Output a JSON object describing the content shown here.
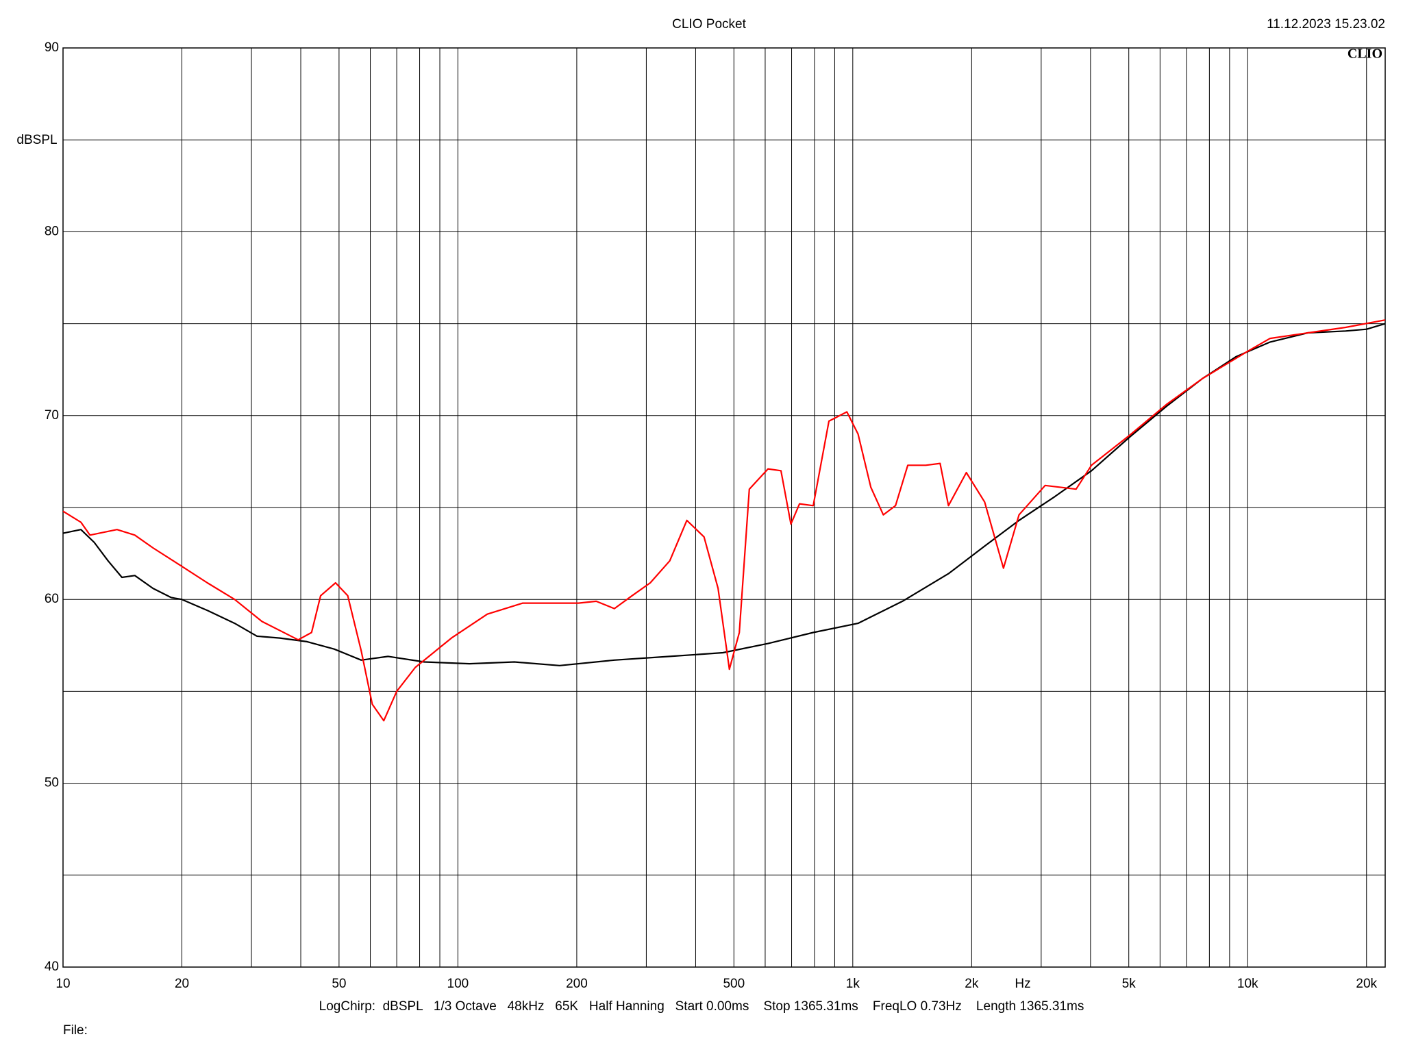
{
  "chart_data": {
    "type": "line",
    "title": "CLIO Pocket",
    "timestamp": "11.12.2023 15.23.02",
    "logo": "CLIO",
    "y_label": "dBSPL",
    "x_unit": "Hz",
    "footer": "LogChirp:  dBSPL   1/3 Octave   48kHz   65K   Half Hanning   Start 0.00ms    Stop 1365.31ms    FreqLO 0.73Hz    Length 1365.31ms",
    "file_label": "File:",
    "x_log": true,
    "xlim": [
      10,
      22300
    ],
    "xticks": [
      10,
      20,
      50,
      100,
      200,
      500,
      {
        "value": 1000,
        "label": "1k"
      },
      {
        "value": 2000,
        "label": "2k"
      },
      {
        "value": 5000,
        "label": "5k"
      },
      {
        "value": 10000,
        "label": "10k"
      },
      {
        "value": 20000,
        "label": "20k"
      }
    ],
    "x_minor_ticks": [
      30,
      40,
      60,
      70,
      80,
      90,
      300,
      400,
      600,
      700,
      800,
      900,
      3000,
      4000,
      6000,
      7000,
      8000,
      9000
    ],
    "ylim": [
      40,
      90
    ],
    "yticks": [
      40,
      50,
      60,
      70,
      80,
      90
    ],
    "y_minor_ticks": [
      45,
      55,
      65,
      75,
      85
    ],
    "grid": true,
    "series": [
      {
        "color": "#000000",
        "x": [
          10,
          11.1,
          12,
          13,
          14.1,
          15.2,
          16.9,
          18.8,
          20,
          23.2,
          27.2,
          31,
          35.4,
          41.5,
          48.6,
          56.9,
          66.6,
          82.2,
          107,
          139,
          181,
          249,
          344,
          469,
          610,
          794,
          1031,
          1336,
          1747,
          2157,
          2636,
          3251,
          4023,
          5005,
          6225,
          7665,
          9337,
          11400,
          14200,
          17700,
          20000,
          22300
        ],
        "values": [
          63.6,
          63.8,
          63.1,
          62.1,
          61.2,
          61.3,
          60.6,
          60.1,
          60.0,
          59.4,
          58.7,
          58.0,
          57.9,
          57.7,
          57.3,
          56.7,
          56.9,
          56.6,
          56.5,
          56.6,
          56.4,
          56.7,
          56.9,
          57.1,
          57.6,
          58.2,
          58.7,
          59.9,
          61.4,
          62.9,
          64.3,
          65.6,
          67.0,
          68.8,
          70.5,
          72.0,
          73.2,
          74.0,
          74.5,
          74.6,
          74.7,
          75.0
        ]
      },
      {
        "color": "#ff0000",
        "x": [
          10,
          11.1,
          11.7,
          13.7,
          15.2,
          16.9,
          20,
          23.2,
          27.2,
          31.9,
          39.4,
          42.6,
          44.9,
          49,
          52.6,
          56.9,
          60.7,
          64.9,
          70,
          78,
          96.3,
          118.7,
          146,
          202,
          224,
          249,
          276,
          307,
          344,
          380,
          420,
          456,
          487,
          516,
          547,
          610,
          658,
          697,
          733,
          794,
          870,
          966,
          1031,
          1111,
          1195,
          1283,
          1378,
          1531,
          1664,
          1747,
          1939,
          2157,
          2408,
          2636,
          3070,
          3678,
          4023,
          5005,
          6225,
          7665,
          10000,
          11400,
          14200,
          17700,
          22300
        ],
        "values": [
          64.8,
          64.2,
          63.5,
          63.8,
          63.5,
          62.8,
          61.8,
          60.9,
          60.0,
          58.8,
          57.8,
          58.2,
          60.2,
          60.9,
          60.2,
          57.2,
          54.3,
          53.4,
          55.0,
          56.3,
          57.9,
          59.2,
          59.8,
          59.8,
          59.9,
          59.5,
          60.2,
          60.9,
          62.1,
          64.3,
          63.4,
          60.6,
          56.2,
          58.2,
          66.0,
          67.1,
          67.0,
          64.1,
          65.2,
          65.1,
          69.7,
          70.2,
          69.0,
          66.1,
          64.6,
          65.1,
          67.3,
          67.3,
          67.4,
          65.1,
          66.9,
          65.3,
          61.7,
          64.6,
          66.2,
          66.0,
          67.3,
          68.9,
          70.6,
          72.0,
          73.5,
          74.2,
          74.5,
          74.8,
          75.2
        ]
      }
    ]
  }
}
